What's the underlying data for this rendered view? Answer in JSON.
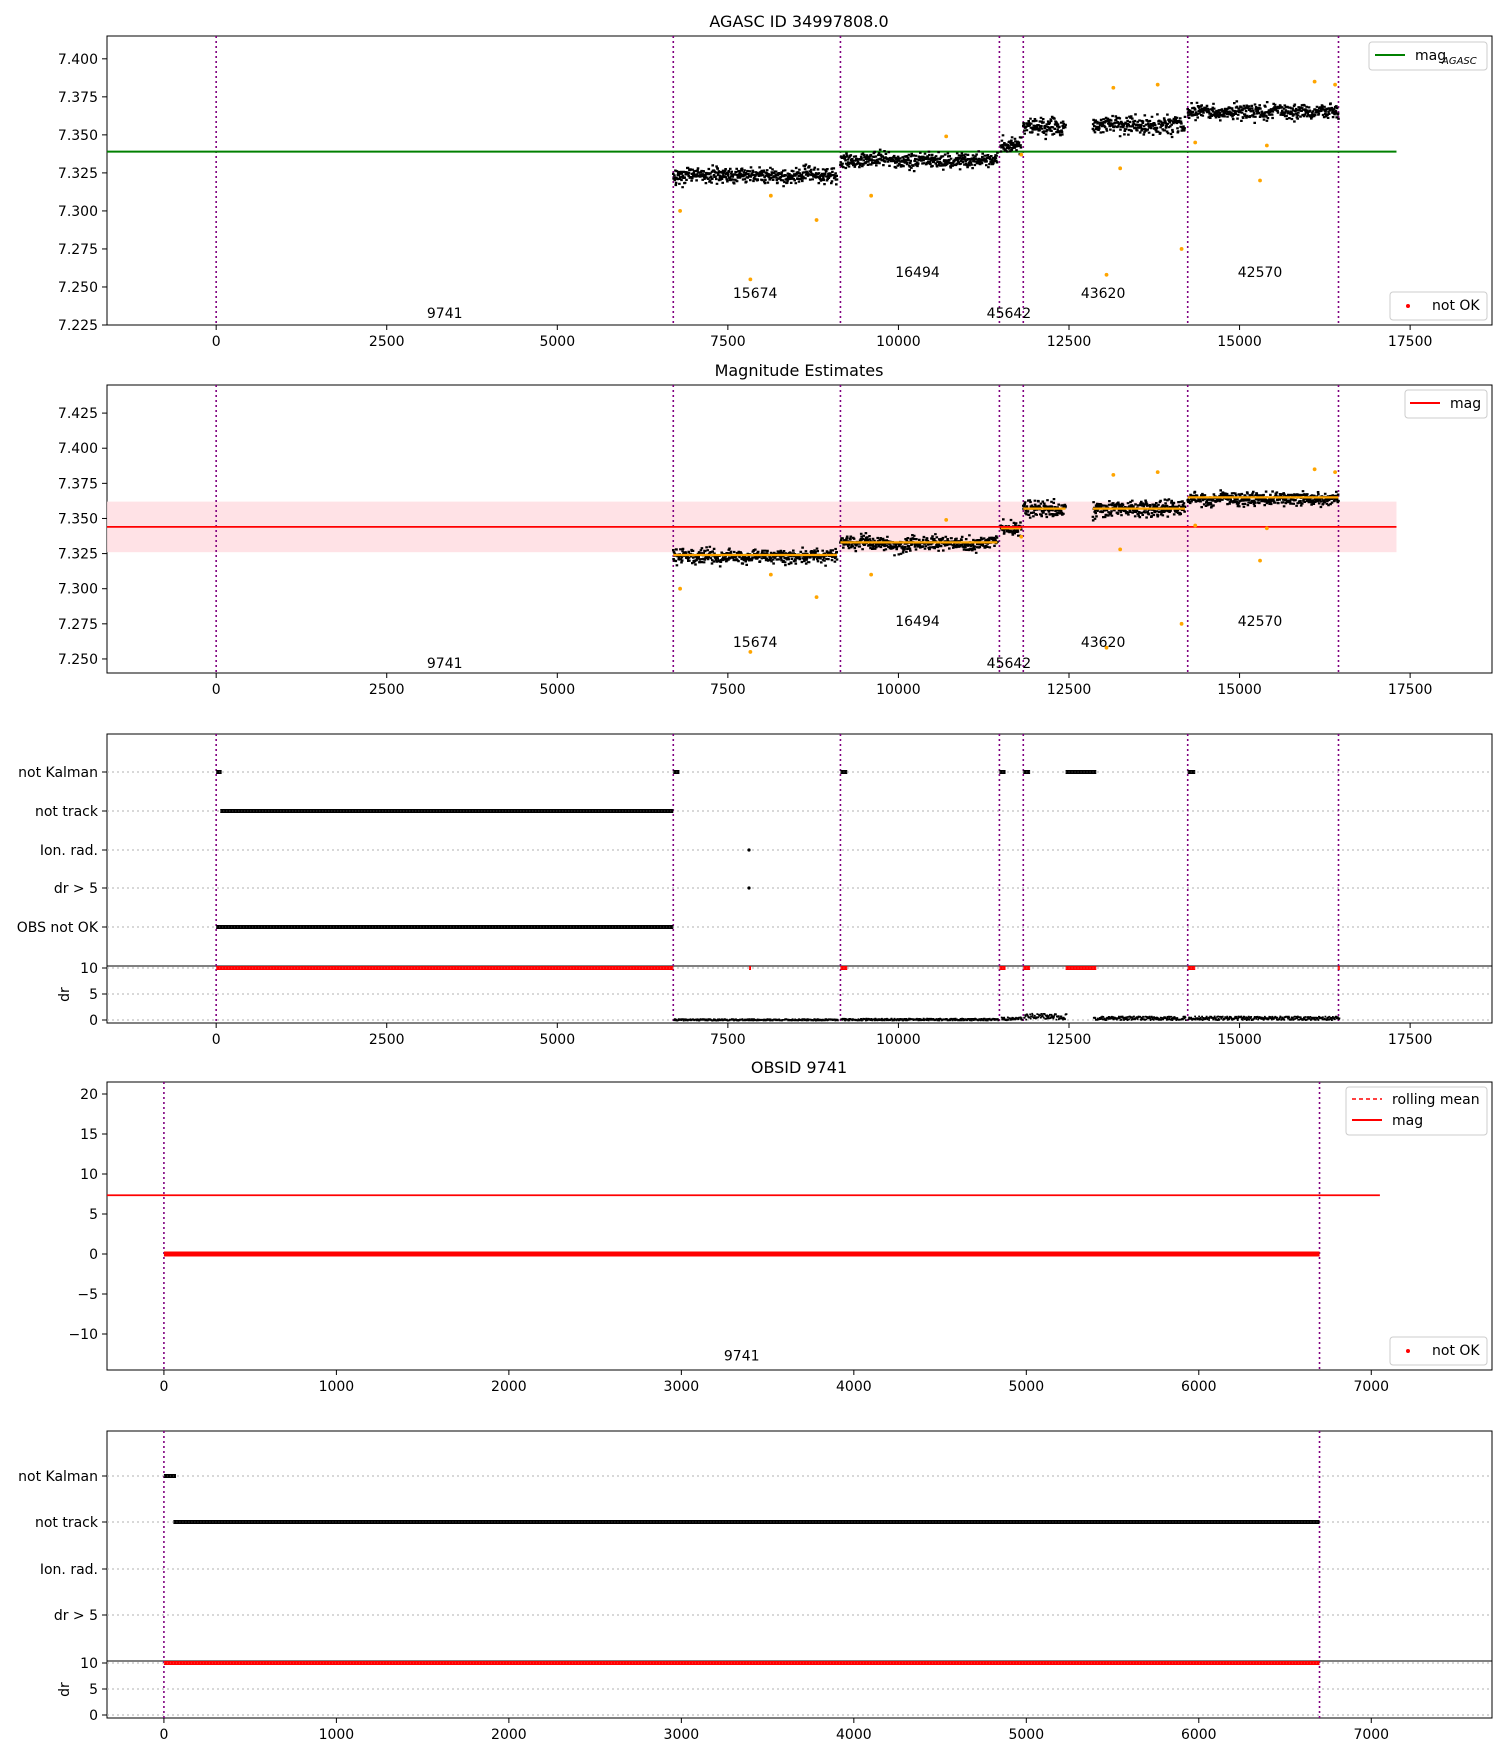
{
  "figure": {
    "colors": {
      "point": "#000000",
      "outlier": "#ffa500",
      "agasc_line": "#008000",
      "mag_line": "#ff0000",
      "band": "#ffdde2",
      "segment_mean": "#ffa500",
      "boundary": "#800080",
      "flag_red": "#ff0000",
      "grid": "#b0b0b0"
    }
  },
  "chart_data": [
    {
      "type": "scatter",
      "title": "AGASC ID 34997808.0",
      "xlim": [
        -1600,
        18700
      ],
      "ylim": [
        7.225,
        7.415
      ],
      "xticks": [
        0,
        2500,
        5000,
        7500,
        10000,
        12500,
        15000,
        17500
      ],
      "xtick_labels": [
        "0",
        "2500",
        "5000",
        "7500",
        "10000",
        "12500",
        "15000",
        "17500"
      ],
      "yticks": [
        7.225,
        7.25,
        7.275,
        7.3,
        7.325,
        7.35,
        7.375,
        7.4
      ],
      "ytick_labels": [
        "7.225",
        "7.250",
        "7.275",
        "7.300",
        "7.325",
        "7.350",
        "7.375",
        "7.400"
      ],
      "boundaries": [
        0,
        6700,
        9150,
        11480,
        11830,
        14240,
        16450
      ],
      "agasc_mag": 7.339,
      "agasc_line_x": [
        -1600,
        17300
      ],
      "segments": [
        {
          "x": [
            6700,
            9100
          ],
          "mean": 7.324,
          "spread": 0.005
        },
        {
          "x": [
            9150,
            11450
          ],
          "mean": 7.334,
          "spread": 0.005
        },
        {
          "x": [
            11500,
            11800
          ],
          "mean": 7.344,
          "spread": 0.005
        },
        {
          "x": [
            11830,
            12450
          ],
          "mean": 7.356,
          "spread": 0.006
        },
        {
          "x": [
            12850,
            14200
          ],
          "mean": 7.357,
          "spread": 0.006
        },
        {
          "x": [
            14240,
            16450
          ],
          "mean": 7.366,
          "spread": 0.005
        }
      ],
      "outliers": [
        {
          "x": 6800,
          "y": 7.3
        },
        {
          "x": 7830,
          "y": 7.255
        },
        {
          "x": 8130,
          "y": 7.31
        },
        {
          "x": 8800,
          "y": 7.294
        },
        {
          "x": 9600,
          "y": 7.31
        },
        {
          "x": 10700,
          "y": 7.349
        },
        {
          "x": 11800,
          "y": 7.337
        },
        {
          "x": 13050,
          "y": 7.258
        },
        {
          "x": 13250,
          "y": 7.328
        },
        {
          "x": 13150,
          "y": 7.381
        },
        {
          "x": 13800,
          "y": 7.383
        },
        {
          "x": 14150,
          "y": 7.275
        },
        {
          "x": 14350,
          "y": 7.345
        },
        {
          "x": 15300,
          "y": 7.32
        },
        {
          "x": 15400,
          "y": 7.343
        },
        {
          "x": 16100,
          "y": 7.385
        },
        {
          "x": 16400,
          "y": 7.383
        }
      ],
      "annotations": [
        {
          "text": "9741",
          "x": 3350,
          "y": 7.233
        },
        {
          "text": "15674",
          "x": 7900,
          "y": 7.246
        },
        {
          "text": "16494",
          "x": 10280,
          "y": 7.26
        },
        {
          "text": "45642",
          "x": 11620,
          "y": 7.233
        },
        {
          "text": "43620",
          "x": 13000,
          "y": 7.246
        },
        {
          "text": "42570",
          "x": 15300,
          "y": 7.26
        }
      ],
      "legend_upper": {
        "label": "mag",
        "subscript": "AGASC",
        "placement": "upper right"
      },
      "legend_lower": {
        "label": "not OK",
        "placement": "lower right"
      }
    },
    {
      "type": "scatter",
      "title": "Magnitude Estimates",
      "xlim": [
        -1600,
        18700
      ],
      "ylim": [
        7.24,
        7.445
      ],
      "xticks": [
        0,
        2500,
        5000,
        7500,
        10000,
        12500,
        15000,
        17500
      ],
      "xtick_labels": [
        "0",
        "2500",
        "5000",
        "7500",
        "10000",
        "12500",
        "15000",
        "17500"
      ],
      "yticks": [
        7.25,
        7.275,
        7.3,
        7.325,
        7.35,
        7.375,
        7.4,
        7.425
      ],
      "ytick_labels": [
        "7.250",
        "7.275",
        "7.300",
        "7.325",
        "7.350",
        "7.375",
        "7.400",
        "7.425"
      ],
      "boundaries": [
        0,
        6700,
        9150,
        11480,
        11830,
        14240,
        16450
      ],
      "mag": 7.344,
      "mag_band": [
        7.326,
        7.362
      ],
      "mag_line_x": [
        -1600,
        17300
      ],
      "segment_means": [
        7.324,
        7.333,
        7.343,
        7.357,
        7.357,
        7.365
      ],
      "annotations": [
        {
          "text": "9741",
          "x": 3350,
          "y": 7.247
        },
        {
          "text": "15674",
          "x": 7900,
          "y": 7.262
        },
        {
          "text": "16494",
          "x": 10280,
          "y": 7.277
        },
        {
          "text": "45642",
          "x": 11620,
          "y": 7.247
        },
        {
          "text": "43620",
          "x": 13000,
          "y": 7.262
        },
        {
          "text": "42570",
          "x": 15300,
          "y": 7.277
        }
      ],
      "legend": {
        "label": "mag",
        "placement": "upper right"
      }
    },
    {
      "type": "scatter",
      "title": "",
      "xlim": [
        -1600,
        18700
      ],
      "xticks": [
        0,
        2500,
        5000,
        7500,
        10000,
        12500,
        15000,
        17500
      ],
      "xtick_labels": [
        "0",
        "2500",
        "5000",
        "7500",
        "10000",
        "12500",
        "15000",
        "17500"
      ],
      "flag_labels": [
        "not Kalman",
        "not track",
        "Ion. rad.",
        "dr > 5",
        "OBS not OK"
      ],
      "dr_label": "dr",
      "dr_ticks": [
        0,
        5,
        10
      ],
      "boundaries": [
        0,
        6700,
        9150,
        11480,
        11830,
        14240,
        16450
      ],
      "not_kalman": [
        [
          0,
          80
        ],
        [
          6700,
          6790
        ],
        [
          9150,
          9250
        ],
        [
          11480,
          11570
        ],
        [
          11830,
          11930
        ],
        [
          12450,
          12900
        ],
        [
          14240,
          14350
        ]
      ],
      "not_track": [
        [
          60,
          6700
        ]
      ],
      "ion_rad": [
        7810
      ],
      "dr_gt_5": [
        7810
      ],
      "obs_not_ok": [
        [
          0,
          6700
        ]
      ],
      "red_flags": [
        [
          0,
          6700
        ],
        [
          7810,
          7830
        ],
        [
          9150,
          9250
        ],
        [
          11480,
          11570
        ],
        [
          11830,
          11930
        ],
        [
          12450,
          12900
        ],
        [
          14240,
          14350
        ],
        [
          16440,
          16460
        ]
      ],
      "dr_segments": [
        {
          "x": [
            6700,
            9100
          ],
          "level": 0.2
        },
        {
          "x": [
            9150,
            11450
          ],
          "level": 0.25
        },
        {
          "x": [
            11500,
            11800
          ],
          "level": 0.4
        },
        {
          "x": [
            11830,
            12450
          ],
          "level": 0.8
        },
        {
          "x": [
            12850,
            14200
          ],
          "level": 0.5
        },
        {
          "x": [
            14240,
            16450
          ],
          "level": 0.5
        }
      ]
    },
    {
      "type": "line",
      "title": "OBSID 9741",
      "xlim": [
        -330,
        7700
      ],
      "ylim": [
        -14.5,
        21.5
      ],
      "xticks": [
        0,
        1000,
        2000,
        3000,
        4000,
        5000,
        6000,
        7000
      ],
      "xtick_labels": [
        "0",
        "1000",
        "2000",
        "3000",
        "4000",
        "5000",
        "6000",
        "7000"
      ],
      "yticks": [
        -10,
        -5,
        0,
        5,
        10,
        15,
        20
      ],
      "ytick_labels": [
        "−10",
        "−5",
        "0",
        "5",
        "10",
        "15",
        "20"
      ],
      "boundaries": [
        0,
        6700
      ],
      "mag": 7.34,
      "mag_line_x": [
        -330,
        7050
      ],
      "not_ok_band": [
        0,
        6700
      ],
      "not_ok_value": 0,
      "annotation": {
        "text": "9741",
        "x": 3350,
        "y": -12.7
      },
      "legend_upper": [
        {
          "label": "rolling mean",
          "style": "dashed"
        },
        {
          "label": "mag",
          "style": "solid"
        }
      ],
      "legend_lower": {
        "label": "not OK",
        "placement": "lower right"
      }
    },
    {
      "type": "scatter",
      "title": "",
      "xlim": [
        -330,
        7700
      ],
      "xticks": [
        0,
        1000,
        2000,
        3000,
        4000,
        5000,
        6000,
        7000
      ],
      "xtick_labels": [
        "0",
        "1000",
        "2000",
        "3000",
        "4000",
        "5000",
        "6000",
        "7000"
      ],
      "flag_labels": [
        "not Kalman",
        "not track",
        "Ion. rad.",
        "dr > 5"
      ],
      "dr_label": "dr",
      "dr_ticks": [
        0,
        5,
        10
      ],
      "boundaries": [
        0,
        6700
      ],
      "not_kalman": [
        [
          0,
          70
        ]
      ],
      "not_track": [
        [
          55,
          6700
        ]
      ],
      "red_flags": [
        [
          0,
          6700
        ]
      ]
    }
  ]
}
